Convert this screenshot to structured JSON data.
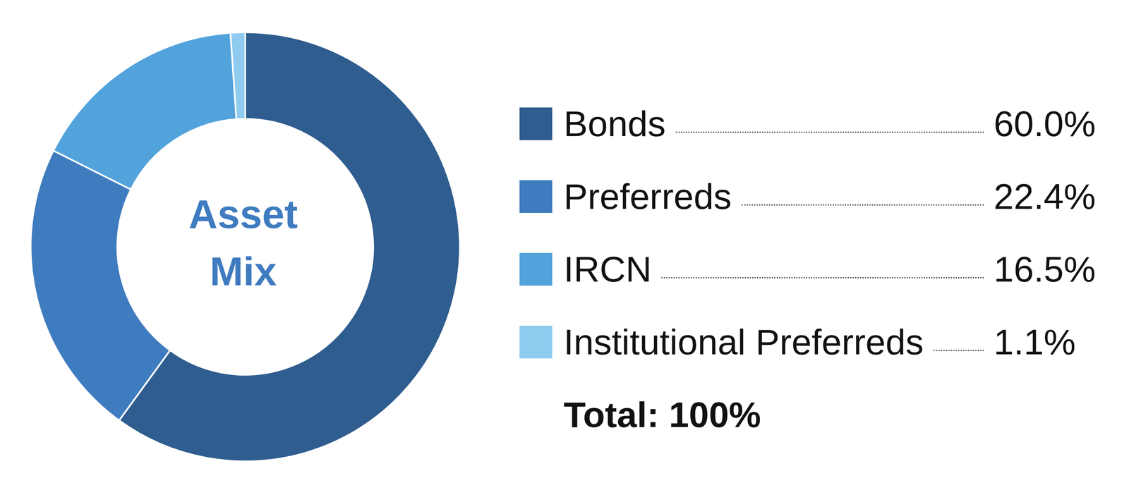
{
  "chart_data": {
    "type": "pie",
    "title": "Asset Mix",
    "categories": [
      "Bonds",
      "Preferreds",
      "IRCN",
      "Institutional Preferreds"
    ],
    "values": [
      60.0,
      22.4,
      16.5,
      1.1
    ],
    "value_labels": [
      "60.0%",
      "22.4%",
      "16.5%",
      "1.1%"
    ],
    "colors": [
      "#2f5d8f",
      "#3f7bbf",
      "#52a2db",
      "#8fcbef"
    ],
    "legend": "right",
    "annotations": [
      "Total: 100%"
    ]
  }
}
